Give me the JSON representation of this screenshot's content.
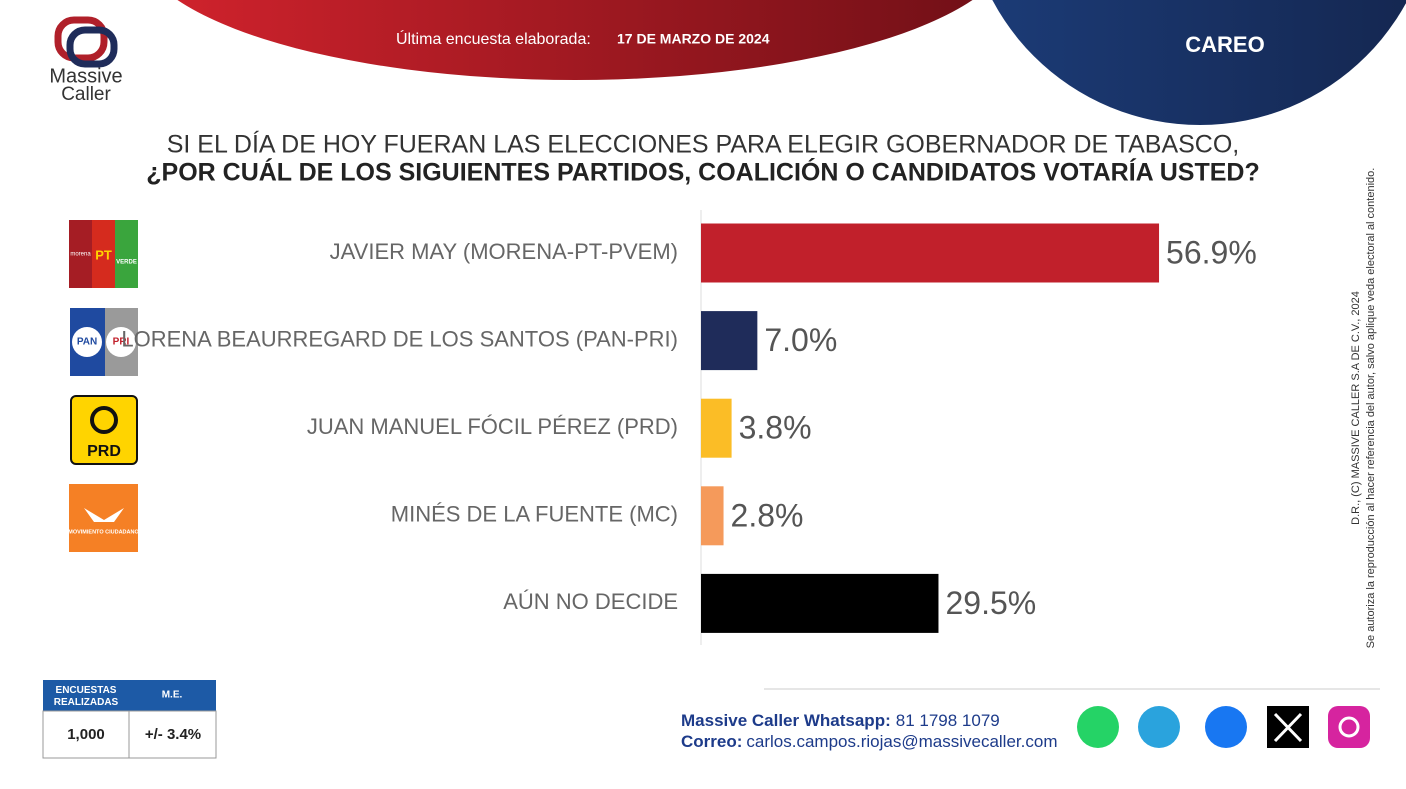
{
  "brand": {
    "line1": "Massive",
    "line2": "Caller"
  },
  "header": {
    "survey_label": "Última encuesta elaborada:",
    "survey_date": "17 DE MARZO DE 2024",
    "section": "CAREO"
  },
  "chart_data": {
    "type": "hbar",
    "title": "SI EL DÍA DE HOY FUERAN LAS ELECCIONES PARA ELEGIR GOBERNADOR DE TABASCO,",
    "subtitle": "¿POR CUÁL DE LOS SIGUIENTES PARTIDOS, COALICIÓN O CANDIDATOS VOTARÍA USTED?",
    "categories": [
      "JAVIER MAY (MORENA-PT-PVEM)",
      "LORENA BEAURREGARD DE LOS SANTOS (PAN-PRI)",
      "JUAN MANUEL FÓCIL PÉREZ (PRD)",
      "MINÉS DE LA FUENTE (MC)",
      "AÚN NO DECIDE"
    ],
    "values": [
      56.9,
      7.0,
      3.8,
      2.8,
      29.5
    ],
    "value_labels": [
      "56.9%",
      "7.0%",
      "3.8%",
      "2.8%",
      "29.5%"
    ],
    "colors": [
      "#c1202b",
      "#1f2c5a",
      "#fbbd26",
      "#f59a5b",
      "#000000"
    ],
    "xlim": [
      0,
      60
    ]
  },
  "logos": {
    "pt": "PT",
    "verde": "VERDE",
    "morena": "morena",
    "pan": "PAN",
    "pri": "PRI",
    "prd": "PRD",
    "mc": "MOVIMIENTO CIUDADANO"
  },
  "survey_table": {
    "headers": [
      "ENCUESTAS REALIZADAS",
      "M.E."
    ],
    "row": [
      "1,000",
      "+/- 3.4%"
    ]
  },
  "contact": {
    "whatsapp_label": "Massive Caller Whatsapp:",
    "whatsapp": "81 1798 1079",
    "email_label": "Correo:",
    "email": "carlos.campos.riojas@massivecaller.com"
  },
  "copyright": {
    "line1": "D.R., (C) MASSIVE CALLER S.A DE C.V., 2024",
    "line2": "Se autoriza la reproducción al hacer referencia del autor, salvo aplique veda electoral al contenido."
  }
}
